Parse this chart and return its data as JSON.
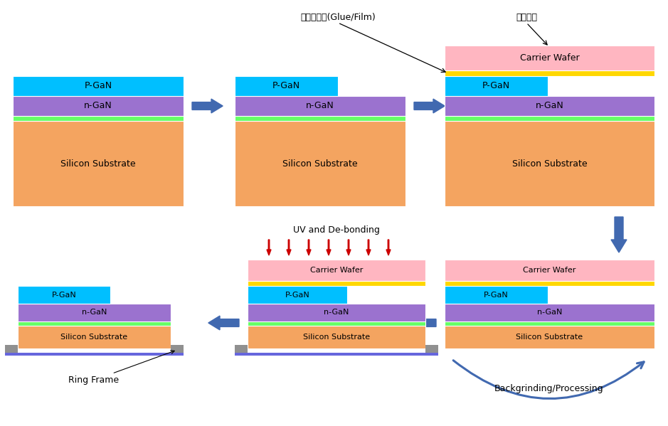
{
  "colors": {
    "pgaN": "#00BFFF",
    "nGaN": "#9B72CF",
    "silicon": "#F4A460",
    "green_layer": "#66FF66",
    "carrier": "#FFB6C1",
    "glue": "#FFD700",
    "arrow_blue": "#4169B0",
    "arrow_red": "#CC0000",
    "gray_frame": "#909090",
    "blue_tape": "#4444CC",
    "bg": "#FFFFFF"
  },
  "labels": {
    "pgaN": "P-GaN",
    "nGaN": "n-GaN",
    "silicon": "Silicon Substrate",
    "carrier": "Carrier Wafer",
    "ring_frame": "Ring Frame",
    "uv_debond": "UV and De-bonding",
    "backgrind": "Backgrinding/Processing",
    "glue_label": "임시접착제(Glue/Film)",
    "bond_label": "임시본딩"
  }
}
